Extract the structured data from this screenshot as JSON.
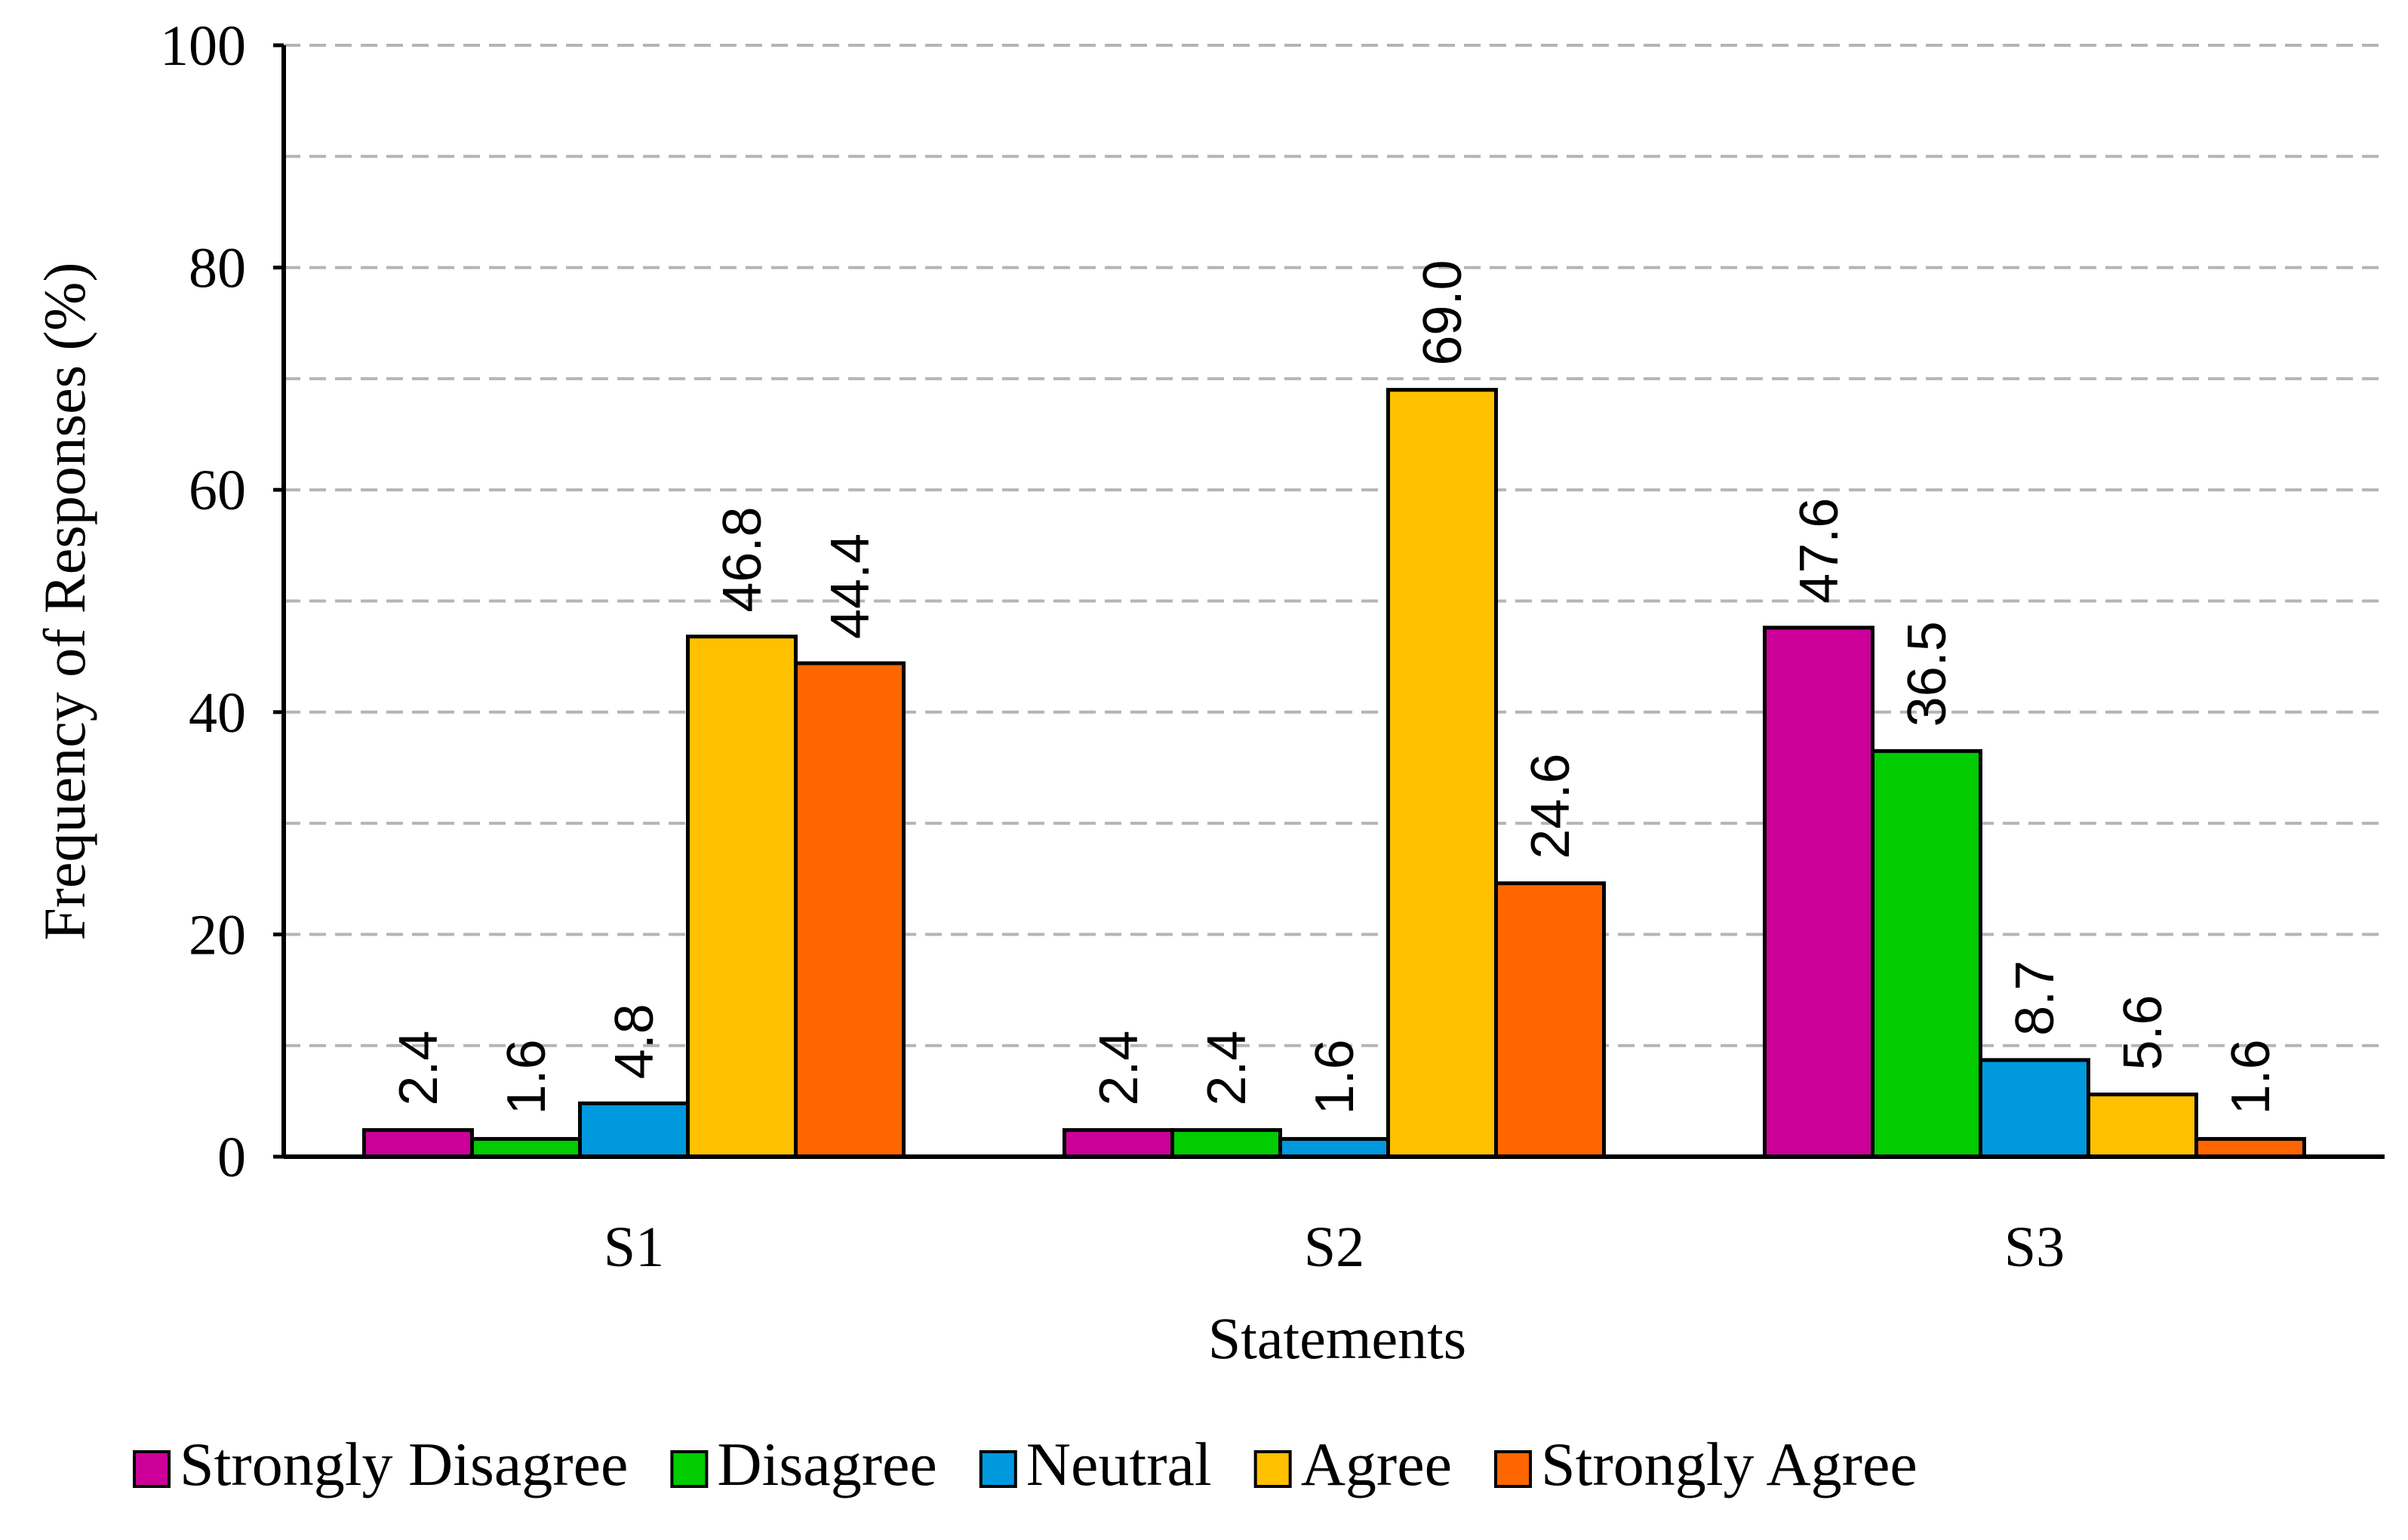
{
  "chart_data": {
    "type": "bar",
    "title": "",
    "xlabel": "Statements",
    "ylabel": "Frequency of Responses (%)",
    "ylim": [
      0,
      100
    ],
    "yticks": [
      0,
      20,
      40,
      60,
      80,
      100
    ],
    "minor_grid_step": 10,
    "grid": true,
    "legend_position": "bottom",
    "categories": [
      "S1",
      "S2",
      "S3"
    ],
    "series": [
      {
        "name": "Strongly Disagree",
        "color": "#CC0099",
        "values": [
          2.4,
          2.4,
          47.6
        ],
        "labels": [
          "2.4",
          "2.4",
          "47.6"
        ]
      },
      {
        "name": "Disagree",
        "color": "#00CC00",
        "values": [
          1.6,
          2.4,
          36.5
        ],
        "labels": [
          "1.6",
          "2.4",
          "36.5"
        ]
      },
      {
        "name": "Neutral",
        "color": "#0099DD",
        "values": [
          4.8,
          1.6,
          8.7
        ],
        "labels": [
          "4.8",
          "1.6",
          "8.7"
        ]
      },
      {
        "name": "Agree",
        "color": "#FFC000",
        "values": [
          46.8,
          69.0,
          5.6
        ],
        "labels": [
          "46.8",
          "69.0",
          "5.6"
        ]
      },
      {
        "name": "Strongly Agree",
        "color": "#FF6600",
        "values": [
          44.4,
          24.6,
          1.6
        ],
        "labels": [
          "44.4",
          "24.6",
          "1.6"
        ]
      }
    ]
  }
}
